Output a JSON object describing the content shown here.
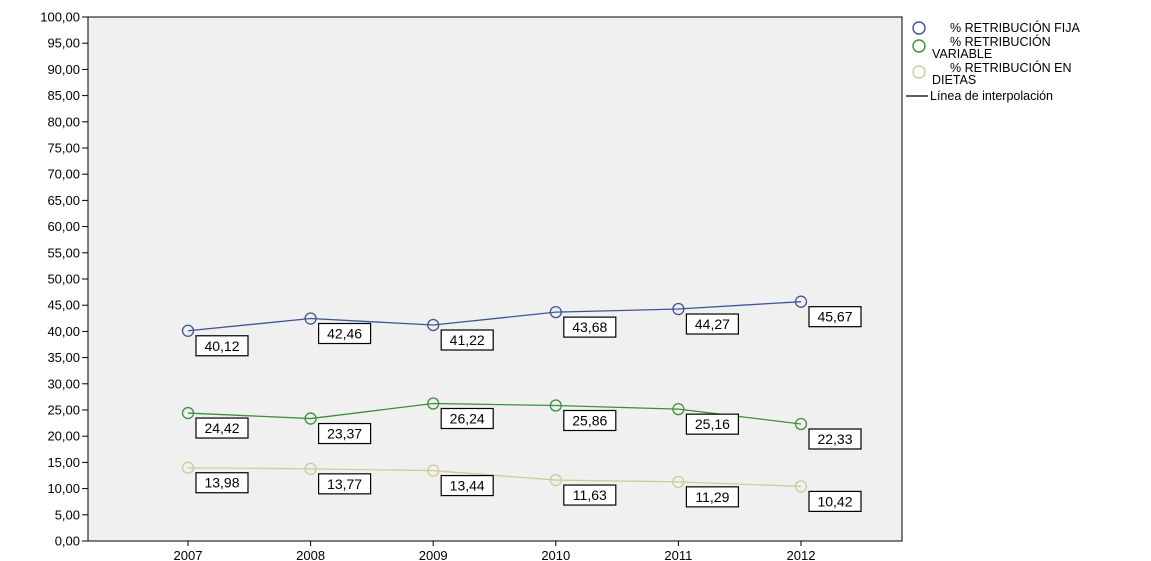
{
  "chart_data": {
    "type": "line",
    "categories": [
      "2007",
      "2008",
      "2009",
      "2010",
      "2011",
      "2012"
    ],
    "ylim": [
      0,
      100
    ],
    "yticks": [
      "0,00",
      "5,00",
      "10,00",
      "15,00",
      "20,00",
      "25,00",
      "30,00",
      "35,00",
      "40,00",
      "45,00",
      "50,00",
      "55,00",
      "60,00",
      "65,00",
      "70,00",
      "75,00",
      "80,00",
      "85,00",
      "90,00",
      "95,00",
      "100,00"
    ],
    "grid": false,
    "legend_position": "right",
    "series": [
      {
        "name": "% RETRIBUCIÓN FIJA",
        "legend_lines": [
          "% RETRIBUCIÓN FIJA"
        ],
        "color": "#3f5596",
        "values": [
          40.12,
          42.46,
          41.22,
          43.68,
          44.27,
          45.67
        ],
        "labels": [
          "40,12",
          "42,46",
          "41,22",
          "43,68",
          "44,27",
          "45,67"
        ]
      },
      {
        "name": "% RETRIBUCIÓN VARIABLE",
        "legend_lines": [
          "% RETRIBUCIÓN",
          "VARIABLE"
        ],
        "color": "#3d8f3d",
        "values": [
          24.42,
          23.37,
          26.24,
          25.86,
          25.16,
          22.33
        ],
        "labels": [
          "24,42",
          "23,37",
          "26,24",
          "25,86",
          "25,16",
          "22,33"
        ]
      },
      {
        "name": "% RETRIBUCIÓN EN DIETAS",
        "legend_lines": [
          "% RETRIBUCIÓN EN",
          "DIETAS"
        ],
        "color": "#cfcb9a",
        "values": [
          13.98,
          13.77,
          13.44,
          11.63,
          11.29,
          10.42
        ],
        "labels": [
          "13,98",
          "13,77",
          "13,44",
          "11,63",
          "11,29",
          "10,42"
        ]
      }
    ],
    "interpolation_legend": "Línea de interpolación",
    "colors": {
      "plot_background": "#f0f0f0",
      "axis": "#000000"
    }
  }
}
